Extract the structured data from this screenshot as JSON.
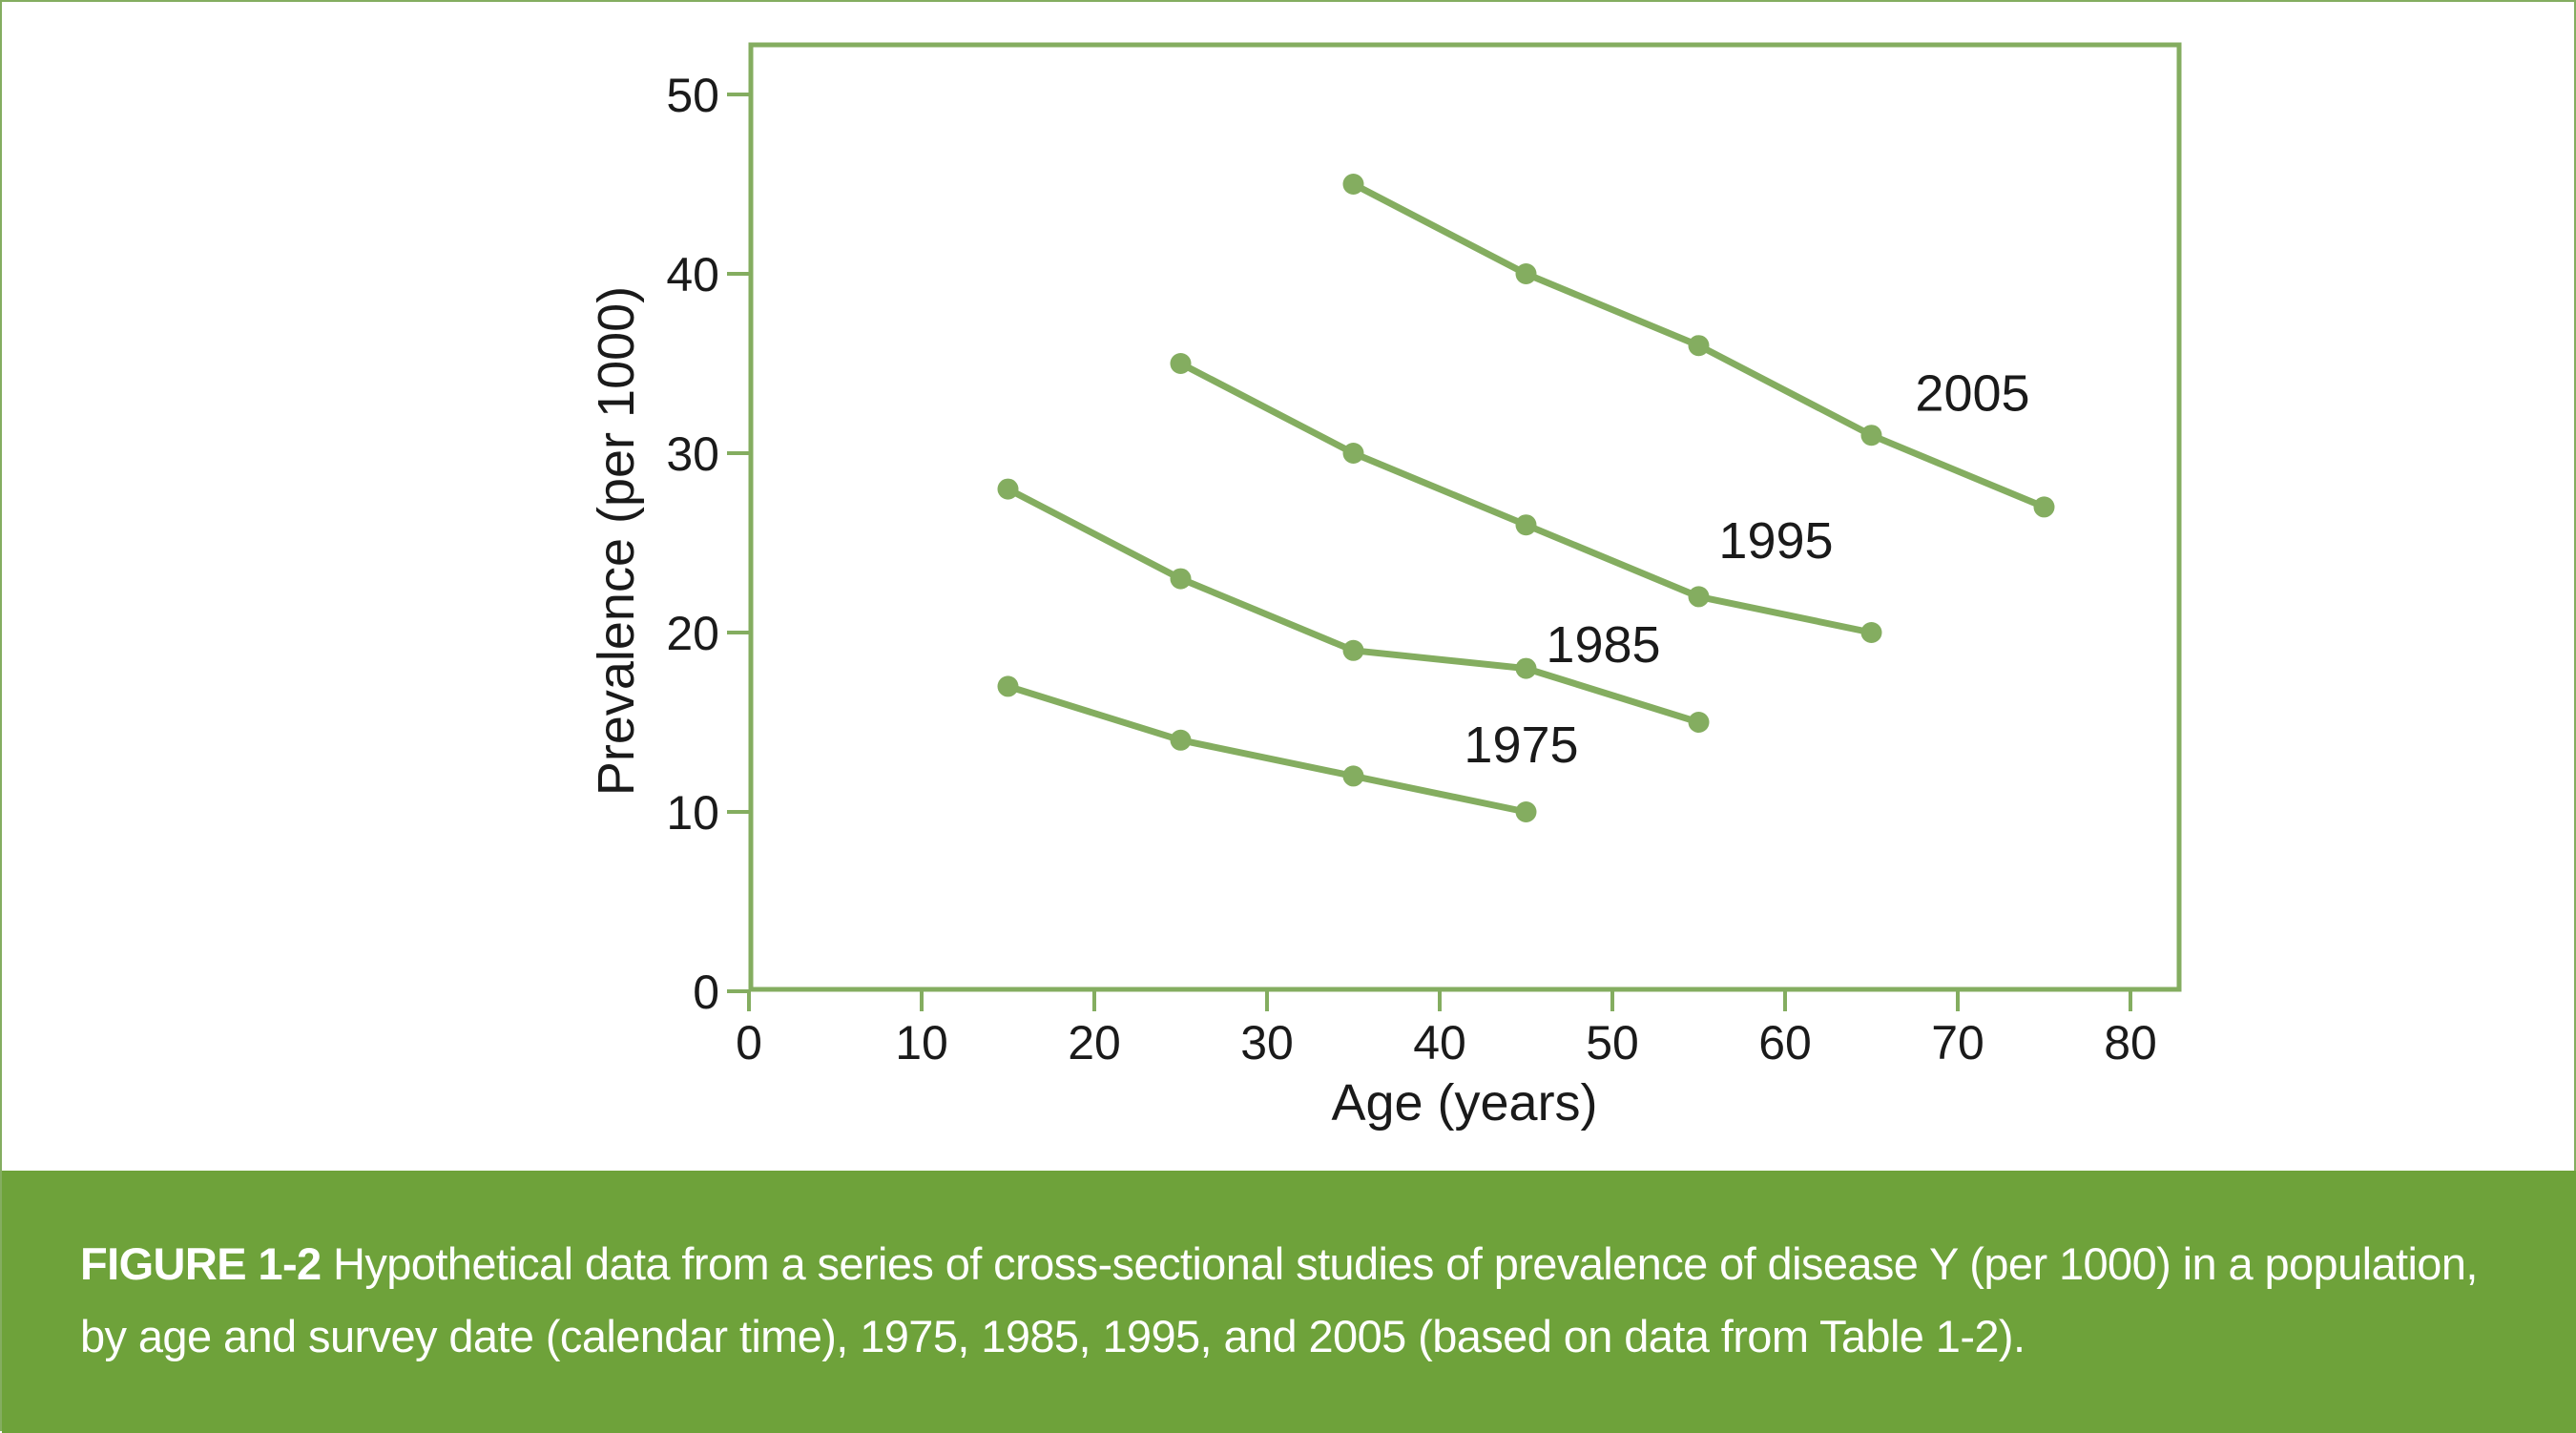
{
  "colors": {
    "accent": "#84ad60",
    "line": "#84ad60",
    "caption_bg": "#6ea23a",
    "caption_text": "#ffffff",
    "text": "#1a1a1a"
  },
  "caption": {
    "label": "FIGURE 1-2",
    "text": " Hypothetical data from a series of cross-sectional studies of prevalence of disease Y (per 1000) in a population, by age and survey date (calendar time), 1975, 1985, 1995, and 2005 (based on data from Table 1-2)."
  },
  "chart_data": {
    "type": "line",
    "title": "",
    "xlabel": "Age (years)",
    "ylabel": "Prevalence (per 1000)",
    "xlim": [
      0,
      80
    ],
    "ylim": [
      0,
      50
    ],
    "xticks": [
      0,
      10,
      20,
      30,
      40,
      50,
      60,
      70,
      80
    ],
    "yticks": [
      0,
      10,
      20,
      30,
      40,
      50
    ],
    "grid": false,
    "legend": "inline labels next to each line",
    "series": [
      {
        "name": "1975",
        "x": [
          15,
          25,
          35,
          45
        ],
        "y": [
          17,
          14,
          12,
          10
        ]
      },
      {
        "name": "1985",
        "x": [
          15,
          25,
          35,
          45,
          55
        ],
        "y": [
          28,
          23,
          19,
          18,
          15
        ]
      },
      {
        "name": "1995",
        "x": [
          25,
          35,
          45,
          55,
          65
        ],
        "y": [
          35,
          30,
          26,
          22,
          20
        ]
      },
      {
        "name": "2005",
        "x": [
          35,
          45,
          55,
          65,
          75
        ],
        "y": [
          45,
          40,
          36,
          31,
          27
        ]
      }
    ]
  }
}
